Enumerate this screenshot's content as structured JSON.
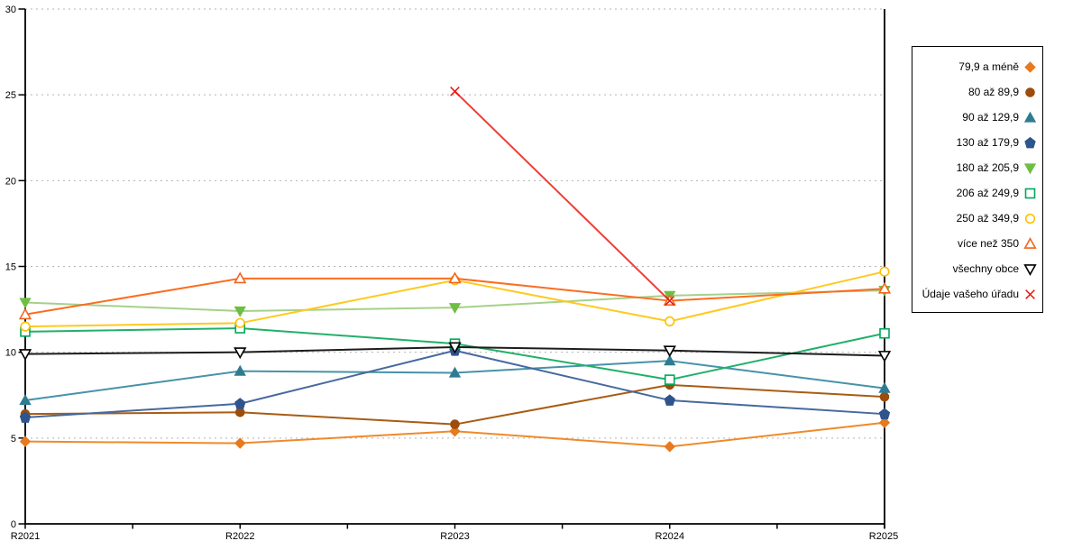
{
  "chart_data": {
    "type": "line",
    "title": "",
    "xlabel": "",
    "ylabel": "",
    "categories": [
      "R2021",
      "R2022",
      "R2023",
      "R2024",
      "R2025"
    ],
    "ylim": [
      0,
      30
    ],
    "yticks": [
      0,
      5,
      10,
      15,
      20,
      25,
      30
    ],
    "grid": "horizontal-dotted",
    "legend_position": "right-boxed",
    "series": [
      {
        "name": "79,9 a méně",
        "marker": "diamond",
        "filled": true,
        "color": "#e8791d",
        "line_color": "#ef8a2a",
        "values": [
          4.8,
          4.7,
          5.4,
          4.5,
          5.9
        ]
      },
      {
        "name": "80 až 89,9",
        "marker": "circle",
        "filled": true,
        "color": "#9c4d0b",
        "line_color": "#a85c14",
        "values": [
          6.4,
          6.5,
          5.8,
          8.1,
          7.4
        ]
      },
      {
        "name": "90 až 129,9",
        "marker": "triangle-up",
        "filled": true,
        "color": "#2e7c92",
        "line_color": "#4792a7",
        "values": [
          7.2,
          8.9,
          8.8,
          9.5,
          7.9
        ]
      },
      {
        "name": "130 až 179,9",
        "marker": "pentagon",
        "filled": true,
        "color": "#2f548c",
        "line_color": "#46699f",
        "values": [
          6.2,
          7.0,
          10.1,
          7.2,
          6.4
        ]
      },
      {
        "name": "180 až 205,9",
        "marker": "triangle-down",
        "filled": true,
        "color": "#6fbe44",
        "line_color": "#a5d18a",
        "values": [
          12.9,
          12.4,
          12.6,
          13.3,
          13.6
        ]
      },
      {
        "name": "206 až 249,9",
        "marker": "square",
        "filled": false,
        "color": "#00a85c",
        "line_color": "#21b06a",
        "values": [
          11.2,
          11.4,
          10.5,
          8.4,
          11.1
        ]
      },
      {
        "name": "250 až 349,9",
        "marker": "circle",
        "filled": false,
        "color": "#ffc000",
        "line_color": "#ffc91f",
        "values": [
          11.5,
          11.7,
          14.2,
          11.8,
          14.7
        ]
      },
      {
        "name": "více než 350",
        "marker": "triangle-up",
        "filled": false,
        "color": "#f2661f",
        "line_color": "#fb6d20",
        "values": [
          12.2,
          14.3,
          14.3,
          13.0,
          13.7
        ]
      },
      {
        "name": "všechny obce",
        "marker": "triangle-down",
        "filled": false,
        "color": "#000000",
        "line_color": "#1c1c1c",
        "values": [
          9.9,
          10.0,
          10.3,
          10.1,
          9.8
        ]
      },
      {
        "name": "Údaje vašeho úřadu",
        "marker": "x",
        "filled": false,
        "color": "#e8140c",
        "line_color": "#ef3d36",
        "values": [
          null,
          null,
          25.2,
          13.0,
          null
        ]
      }
    ]
  },
  "axes": {
    "y_tick_labels": [
      "0",
      "5",
      "10",
      "15",
      "20",
      "25",
      "30"
    ],
    "x_tick_labels": [
      "R2021",
      "R2022",
      "R2023",
      "R2024",
      "R2025"
    ]
  },
  "colors": {
    "background": "#ffffff",
    "gridline": "#b3b3b3",
    "axis": "#000000"
  }
}
